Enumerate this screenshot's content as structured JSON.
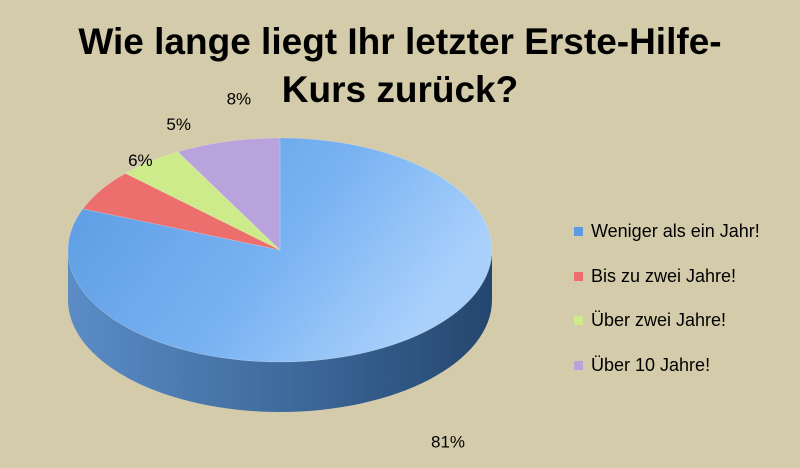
{
  "chart_data": {
    "type": "pie",
    "title_lines": [
      "Wie lange liegt Ihr letzter Erste-Hilfe-",
      "Kurs zurück?"
    ],
    "categories": [
      "Weniger als ein Jahr!",
      "Bis zu zwei Jahre!",
      "Über zwei Jahre!",
      "Über 10 Jahre!"
    ],
    "values": [
      81,
      6,
      5,
      8
    ],
    "value_labels": [
      "81%",
      "6%",
      "5%",
      "8%"
    ],
    "colors": [
      "#5b9ce0",
      "#ec6f6d",
      "#cdeb8b",
      "#b9a3dd"
    ],
    "side_colors": [
      "#3f6d9e",
      "#a34a48",
      "#8da45c",
      "#7f6e9c"
    ],
    "legend_position": "right",
    "style": "3d"
  }
}
